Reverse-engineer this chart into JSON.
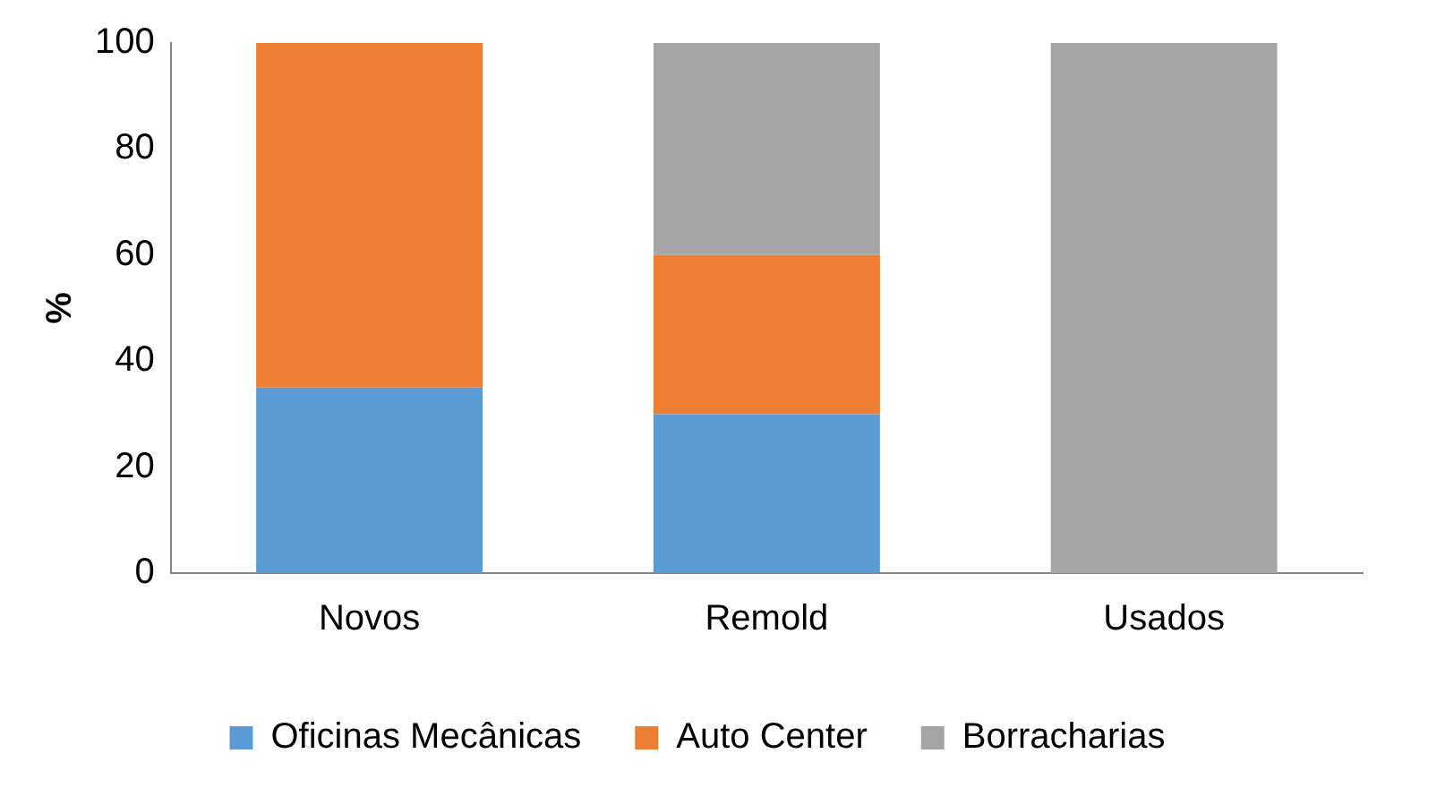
{
  "chart_data": {
    "type": "bar",
    "stacked": true,
    "ylabel": "%",
    "categories": [
      "Novos",
      "Remold",
      "Usados"
    ],
    "series": [
      {
        "name": "Oficinas Mecânicas",
        "color": "#5b9bd5",
        "values": [
          35,
          30,
          0
        ]
      },
      {
        "name": "Auto Center",
        "color": "#ed7d31",
        "values": [
          65,
          30,
          0
        ]
      },
      {
        "name": "Borracharias",
        "color": "#a5a5a5",
        "values": [
          0,
          40,
          100
        ]
      }
    ],
    "ylim": [
      0,
      100
    ],
    "yticks": [
      0,
      20,
      40,
      60,
      80,
      100
    ],
    "grid": false,
    "legend": "bottom"
  }
}
